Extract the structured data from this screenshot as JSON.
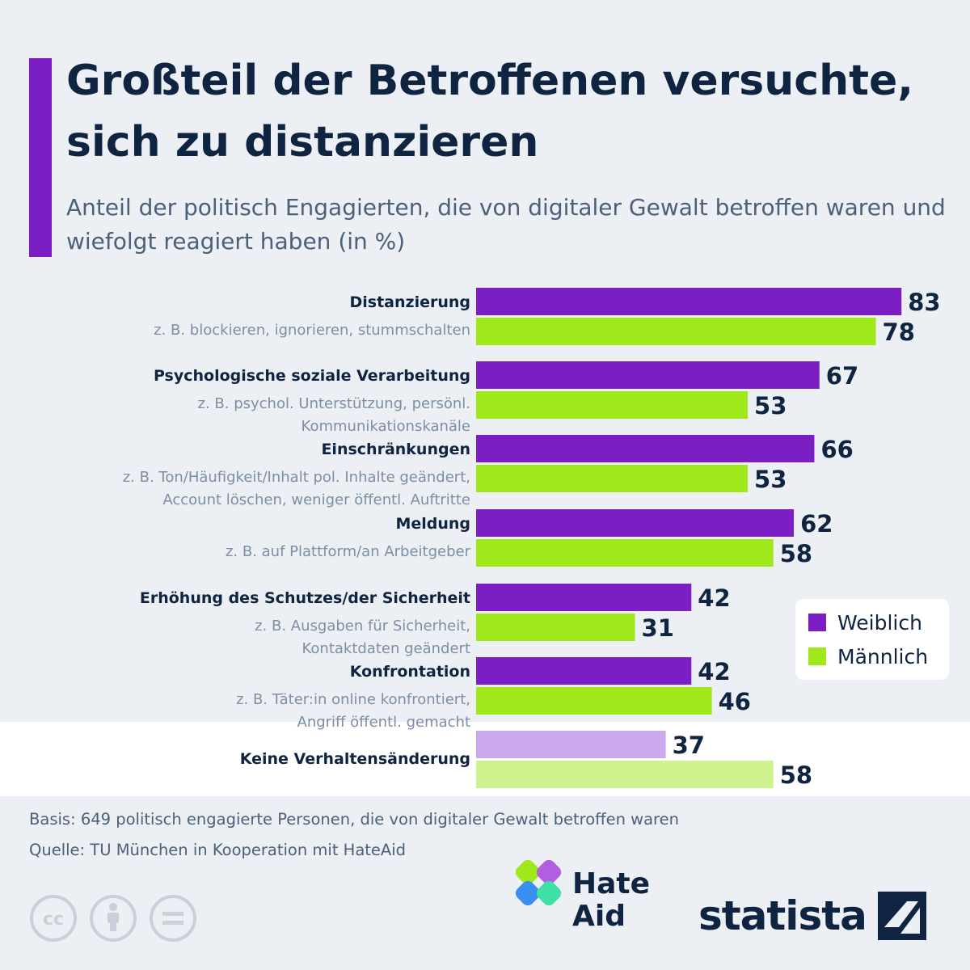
{
  "title": "Großteil der Betroffenen versuchte, sich zu distanzieren",
  "subtitle": "Anteil der politisch Engagierten, die von digitaler Gewalt betroffen waren und wiefolgt reagiert haben (in %)",
  "legend": {
    "female": "Weiblich",
    "male": "Männlich"
  },
  "colors": {
    "female": "#7b1fc4",
    "male": "#9fe81a",
    "female_light": "#caa9ec",
    "male_light": "#cff28f",
    "title": "#0f2440",
    "subtitle": "#4c6079",
    "example_text": "#7c8fa4",
    "accent": "#7b1fc4"
  },
  "chart_data": {
    "type": "bar",
    "orientation": "horizontal",
    "categories": [
      {
        "label": "Distanzierung",
        "example": [
          "z. B. blockieren, ignorieren, stummschalten"
        ]
      },
      {
        "label": "Psychologische soziale Verarbeitung",
        "example": [
          "z. B. psychol. Unterstützung, persönl.",
          "Kommunikationskanäle"
        ]
      },
      {
        "label": "Einschränkungen",
        "example": [
          "z. B. Ton/Häufigkeit/Inhalt pol. Inhalte geändert,",
          "Account löschen, weniger öffentl. Auftritte"
        ]
      },
      {
        "label": "Meldung",
        "example": [
          "z. B. auf Plattform/an Arbeitgeber"
        ]
      },
      {
        "label": "Erhöhung des Schutzes/der Sicherheit",
        "example": [
          "z. B. Ausgaben für Sicherheit,",
          "Kontaktdaten geändert"
        ]
      },
      {
        "label": "Konfrontation",
        "example": [
          "z. B. Täter:in online konfrontiert,",
          "Angriff öffentl. gemacht"
        ]
      },
      {
        "label": "Keine Verhaltensänderung",
        "example": [],
        "highlight": true
      }
    ],
    "series": [
      {
        "name": "Weiblich",
        "values": [
          83,
          67,
          66,
          62,
          42,
          42,
          37
        ]
      },
      {
        "name": "Männlich",
        "values": [
          78,
          53,
          53,
          58,
          31,
          46,
          58
        ]
      }
    ],
    "unit": "%",
    "xlim": [
      0,
      100
    ],
    "grid": false,
    "legend_position": "right"
  },
  "footer": {
    "basis": "Basis: 649 politisch engagierte Personen, die von digitaler Gewalt betroffen waren",
    "source": "Quelle: TU München in Kooperation mit HateAid"
  },
  "logos": {
    "hateaid_line1": "Hate",
    "hateaid_line2": "Aid",
    "statista": "statista"
  },
  "icons": [
    "creative-commons-icon",
    "attribution-icon",
    "no-derivatives-icon",
    "hateaid-logo-icon",
    "statista-logo-icon"
  ]
}
